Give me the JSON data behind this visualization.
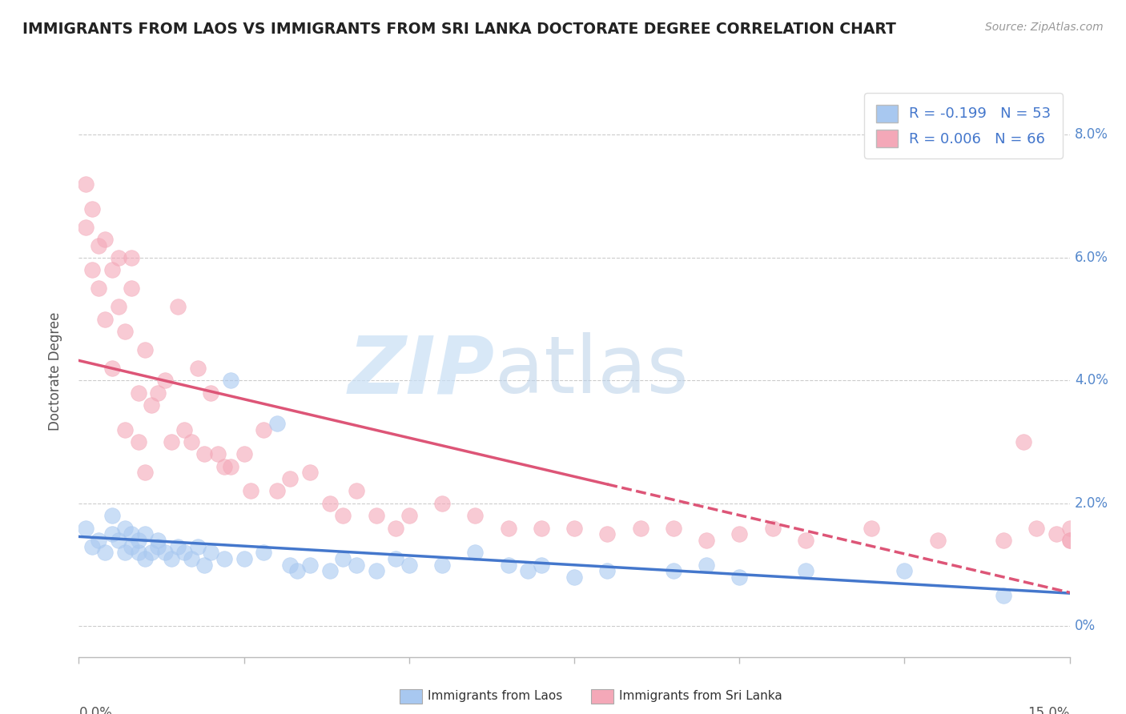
{
  "title": "IMMIGRANTS FROM LAOS VS IMMIGRANTS FROM SRI LANKA DOCTORATE DEGREE CORRELATION CHART",
  "source": "Source: ZipAtlas.com",
  "ylabel": "Doctorate Degree",
  "right_ytick_labels": [
    "0%",
    "2.0%",
    "4.0%",
    "6.0%",
    "8.0%"
  ],
  "right_ytick_vals": [
    0.0,
    0.02,
    0.04,
    0.06,
    0.08
  ],
  "xlim": [
    0.0,
    0.15
  ],
  "ylim": [
    -0.005,
    0.088
  ],
  "R1": -0.199,
  "N1": 53,
  "R2": 0.006,
  "N2": 66,
  "color_laos": "#a8c8f0",
  "color_srilanka": "#f4a8b8",
  "trendline_laos": "#4477cc",
  "trendline_srilanka": "#dd5577",
  "background_color": "#ffffff",
  "watermark_zip": "ZIP",
  "watermark_atlas": "atlas",
  "laos_x": [
    0.001,
    0.002,
    0.003,
    0.004,
    0.005,
    0.005,
    0.006,
    0.007,
    0.007,
    0.008,
    0.008,
    0.009,
    0.009,
    0.01,
    0.01,
    0.011,
    0.012,
    0.012,
    0.013,
    0.014,
    0.015,
    0.016,
    0.017,
    0.018,
    0.019,
    0.02,
    0.022,
    0.023,
    0.025,
    0.028,
    0.03,
    0.032,
    0.033,
    0.035,
    0.038,
    0.04,
    0.042,
    0.045,
    0.048,
    0.05,
    0.055,
    0.06,
    0.065,
    0.068,
    0.07,
    0.075,
    0.08,
    0.09,
    0.095,
    0.1,
    0.11,
    0.125,
    0.14
  ],
  "laos_y": [
    0.016,
    0.013,
    0.014,
    0.012,
    0.015,
    0.018,
    0.014,
    0.012,
    0.016,
    0.013,
    0.015,
    0.012,
    0.014,
    0.011,
    0.015,
    0.012,
    0.013,
    0.014,
    0.012,
    0.011,
    0.013,
    0.012,
    0.011,
    0.013,
    0.01,
    0.012,
    0.011,
    0.04,
    0.011,
    0.012,
    0.033,
    0.01,
    0.009,
    0.01,
    0.009,
    0.011,
    0.01,
    0.009,
    0.011,
    0.01,
    0.01,
    0.012,
    0.01,
    0.009,
    0.01,
    0.008,
    0.009,
    0.009,
    0.01,
    0.008,
    0.009,
    0.009,
    0.005
  ],
  "srilanka_x": [
    0.001,
    0.001,
    0.002,
    0.002,
    0.003,
    0.003,
    0.004,
    0.004,
    0.005,
    0.005,
    0.006,
    0.006,
    0.007,
    0.007,
    0.008,
    0.008,
    0.009,
    0.009,
    0.01,
    0.01,
    0.011,
    0.012,
    0.013,
    0.014,
    0.015,
    0.016,
    0.017,
    0.018,
    0.019,
    0.02,
    0.021,
    0.022,
    0.023,
    0.025,
    0.026,
    0.028,
    0.03,
    0.032,
    0.035,
    0.038,
    0.04,
    0.042,
    0.045,
    0.048,
    0.05,
    0.055,
    0.06,
    0.065,
    0.07,
    0.075,
    0.08,
    0.085,
    0.09,
    0.095,
    0.1,
    0.105,
    0.11,
    0.12,
    0.13,
    0.14,
    0.143,
    0.145,
    0.148,
    0.15,
    0.15,
    0.15
  ],
  "srilanka_y": [
    0.072,
    0.065,
    0.058,
    0.068,
    0.062,
    0.055,
    0.063,
    0.05,
    0.058,
    0.042,
    0.052,
    0.06,
    0.048,
    0.032,
    0.055,
    0.06,
    0.038,
    0.03,
    0.045,
    0.025,
    0.036,
    0.038,
    0.04,
    0.03,
    0.052,
    0.032,
    0.03,
    0.042,
    0.028,
    0.038,
    0.028,
    0.026,
    0.026,
    0.028,
    0.022,
    0.032,
    0.022,
    0.024,
    0.025,
    0.02,
    0.018,
    0.022,
    0.018,
    0.016,
    0.018,
    0.02,
    0.018,
    0.016,
    0.016,
    0.016,
    0.015,
    0.016,
    0.016,
    0.014,
    0.015,
    0.016,
    0.014,
    0.016,
    0.014,
    0.014,
    0.03,
    0.016,
    0.015,
    0.014,
    0.016,
    0.014
  ]
}
